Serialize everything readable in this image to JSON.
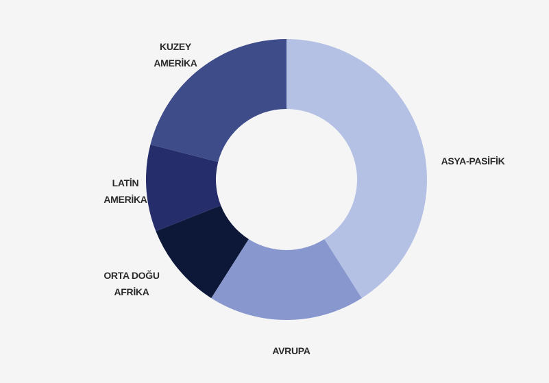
{
  "chart_data": {
    "type": "donut",
    "categories": [
      "ASYA-PASİFİK",
      "AVRUPA",
      "ORTA DOĞU\nAFRİKA",
      "LATİN\nAMERİKA",
      "KUZEY\nAMERİKA"
    ],
    "values": [
      41,
      18,
      10,
      10,
      21
    ],
    "colors": [
      "#b4c1e4",
      "#8898cf",
      "#0d1738",
      "#252d6b",
      "#3f4c8a"
    ]
  }
}
